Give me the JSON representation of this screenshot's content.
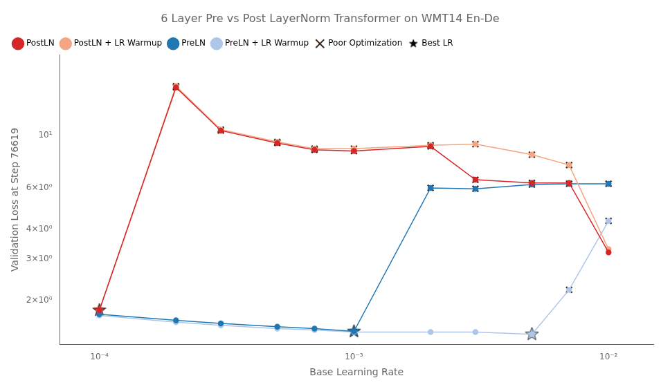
{
  "chart_data": {
    "type": "line",
    "title": "6 Layer Pre vs Post LayerNorm Transformer on WMT14 En-De",
    "xlabel": "Base Learning Rate",
    "ylabel": "Validation Loss at Step 76619",
    "log": true,
    "grid": false,
    "legend": "upper left",
    "x": [
      0.0001,
      0.0002,
      0.0003,
      0.0005,
      0.0007,
      0.001,
      0.002,
      0.003,
      0.005,
      0.007,
      0.01
    ],
    "series": [
      {
        "name": "PostLN",
        "color": "#d62728",
        "marker": "o",
        "values": [
          1.82,
          16.0,
          10.5,
          9.3,
          8.7,
          8.6,
          9.0,
          6.5,
          6.3,
          6.3,
          3.2
        ],
        "poor_optimization": [
          false,
          true,
          true,
          true,
          true,
          true,
          true,
          true,
          true,
          false,
          false
        ],
        "best_lr": [
          true,
          false,
          false,
          false,
          false,
          false,
          false,
          false,
          false,
          false,
          false
        ]
      },
      {
        "name": "PostLN + LR Warmup",
        "color": "#f4a582",
        "marker": "o",
        "values": [
          1.82,
          16.2,
          10.6,
          9.4,
          8.8,
          8.8,
          9.1,
          9.2,
          8.3,
          7.5,
          3.3
        ],
        "poor_optimization": [
          false,
          true,
          true,
          true,
          true,
          true,
          true,
          true,
          true,
          true,
          false
        ],
        "best_lr": [
          false,
          false,
          false,
          false,
          false,
          false,
          false,
          false,
          false,
          false,
          false
        ]
      },
      {
        "name": "PreLN",
        "color": "#1f77b4",
        "marker": "o",
        "values": [
          1.75,
          1.65,
          1.6,
          1.55,
          1.52,
          1.48,
          6.0,
          5.95,
          6.2,
          6.25,
          6.25
        ],
        "poor_optimization": [
          false,
          false,
          false,
          false,
          false,
          false,
          true,
          true,
          true,
          true,
          true
        ],
        "best_lr": [
          false,
          false,
          false,
          false,
          false,
          true,
          false,
          false,
          false,
          false,
          false
        ]
      },
      {
        "name": "PreLN + LR Warmup",
        "color": "#aec7e8",
        "marker": "o",
        "values": [
          1.73,
          1.62,
          1.57,
          1.52,
          1.5,
          1.47,
          1.47,
          1.47,
          1.44,
          2.22,
          4.35
        ],
        "poor_optimization": [
          false,
          false,
          false,
          false,
          false,
          false,
          false,
          false,
          false,
          true,
          true
        ],
        "best_lr": [
          false,
          false,
          false,
          false,
          false,
          false,
          false,
          false,
          true,
          false,
          false
        ]
      }
    ],
    "marker_legend": [
      {
        "name": "Poor Optimization",
        "marker": "x",
        "color": "#3d2b1f"
      },
      {
        "name": "Best LR",
        "marker": "star",
        "color": "#000000"
      }
    ],
    "xlim": [
      7e-05,
      0.015
    ],
    "ylim": [
      1.3,
      22
    ],
    "xticks": [
      {
        "value": 0.0001,
        "label": "10⁻⁴"
      },
      {
        "value": 0.001,
        "label": "10⁻³"
      },
      {
        "value": 0.01,
        "label": "10⁻²"
      }
    ],
    "yticks": [
      {
        "value": 2,
        "label": "2×10⁰"
      },
      {
        "value": 3,
        "label": "3×10⁰"
      },
      {
        "value": 4,
        "label": "4×10⁰"
      },
      {
        "value": 6,
        "label": "6×10⁰"
      },
      {
        "value": 10,
        "label": "10¹"
      }
    ]
  }
}
